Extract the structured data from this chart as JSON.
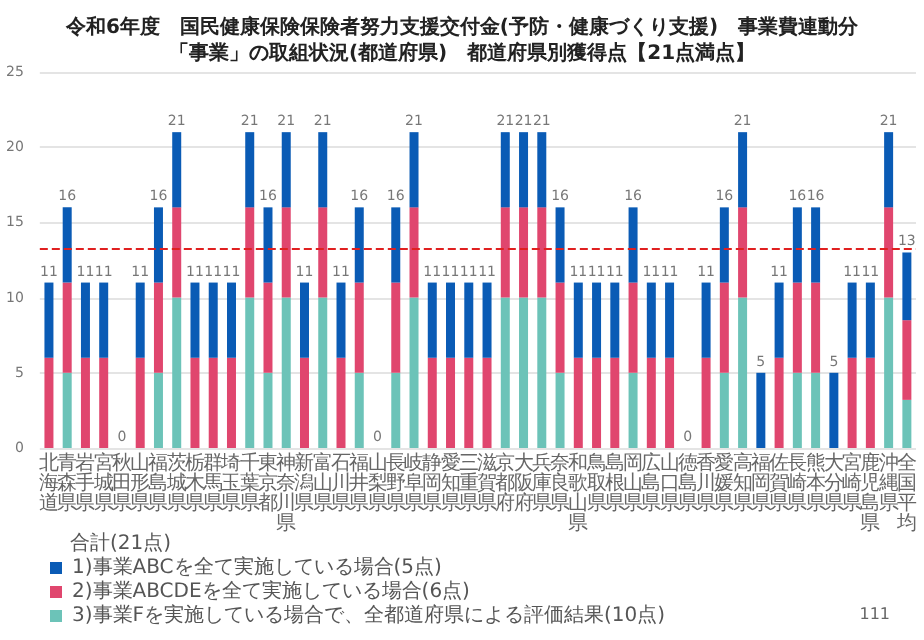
{
  "chart_data": {
    "type": "bar",
    "title": "令和6年度　国民健康保険保険者努力支援交付金(予防・健康づくり支援)　事業費連動分",
    "subtitle": "「事業」の取組状況(都道府県)　都道府県別獲得点【21点満点】",
    "categories": [
      "北海道",
      "青森県",
      "岩手県",
      "宮城県",
      "秋田県",
      "山形県",
      "福島県",
      "茨城県",
      "栃木県",
      "群馬県",
      "埼玉県",
      "千葉県",
      "東京都",
      "神奈川県",
      "新潟県",
      "富山県",
      "石川県",
      "福井県",
      "山梨県",
      "長野県",
      "岐阜県",
      "静岡県",
      "愛知県",
      "三重県",
      "滋賀県",
      "京都府",
      "大阪府",
      "兵庫県",
      "奈良県",
      "和歌山県",
      "鳥取県",
      "島根県",
      "岡山県",
      "広島県",
      "山口県",
      "徳島県",
      "香川県",
      "愛媛県",
      "高知県",
      "福岡県",
      "佐賀県",
      "長崎県",
      "熊本県",
      "大分県",
      "宮崎県",
      "鹿児島県",
      "沖縄県",
      "全国平均"
    ],
    "stacked": true,
    "series": [
      {
        "name": "3)事業Fを実施している場合で、全都道府県による評価結果(10点)",
        "color": "#6cc3b8",
        "values": [
          0,
          5,
          0,
          0,
          0,
          0,
          5,
          10,
          0,
          0,
          0,
          10,
          5,
          10,
          0,
          10,
          0,
          5,
          0,
          5,
          10,
          0,
          0,
          0,
          0,
          10,
          10,
          10,
          5,
          0,
          0,
          0,
          5,
          0,
          0,
          0,
          0,
          5,
          10,
          0,
          0,
          5,
          5,
          0,
          0,
          0,
          10,
          3.2
        ]
      },
      {
        "name": "2)事業ABCDEを全て実施している場合(6点)",
        "color": "#e0466e",
        "values": [
          6,
          6,
          6,
          6,
          0,
          6,
          6,
          6,
          6,
          6,
          6,
          6,
          6,
          6,
          6,
          6,
          6,
          6,
          0,
          6,
          6,
          6,
          6,
          6,
          6,
          6,
          6,
          6,
          6,
          6,
          6,
          6,
          6,
          6,
          6,
          0,
          6,
          6,
          6,
          0,
          6,
          6,
          6,
          0,
          6,
          6,
          6,
          5.3
        ]
      },
      {
        "name": "1)事業ABCを全て実施している場合(5点)",
        "color": "#0a5bb5",
        "values": [
          5,
          5,
          5,
          5,
          0,
          5,
          5,
          5,
          5,
          5,
          5,
          5,
          5,
          5,
          5,
          5,
          5,
          5,
          0,
          5,
          5,
          5,
          5,
          5,
          5,
          5,
          5,
          5,
          5,
          5,
          5,
          5,
          5,
          5,
          5,
          0,
          5,
          5,
          5,
          5,
          5,
          5,
          5,
          5,
          5,
          5,
          5,
          4.5
        ]
      }
    ],
    "totals": [
      "11",
      "16",
      "11",
      "11",
      "0",
      "11",
      "16",
      "21",
      "11",
      "11",
      "11",
      "21",
      "16",
      "21",
      "11",
      "21",
      "11",
      "16",
      "0",
      "16",
      "21",
      "11",
      "11",
      "11",
      "11",
      "21",
      "21",
      "21",
      "16",
      "11",
      "11",
      "11",
      "16",
      "11",
      "11",
      "0",
      "11",
      "16",
      "21",
      "5",
      "11",
      "16",
      "16",
      "5",
      "11",
      "11",
      "21",
      "13"
    ],
    "ylim": [
      0,
      25
    ],
    "yticks": [
      0,
      5,
      10,
      15,
      20,
      25
    ],
    "grid": "y",
    "legend": "bottom left",
    "legend_title": "合計(21点)",
    "ref_lines": [
      {
        "axis": "y",
        "value": 13.3,
        "color": "#e02020",
        "line_style": "dashed"
      }
    ],
    "annotations": [
      "111"
    ]
  }
}
